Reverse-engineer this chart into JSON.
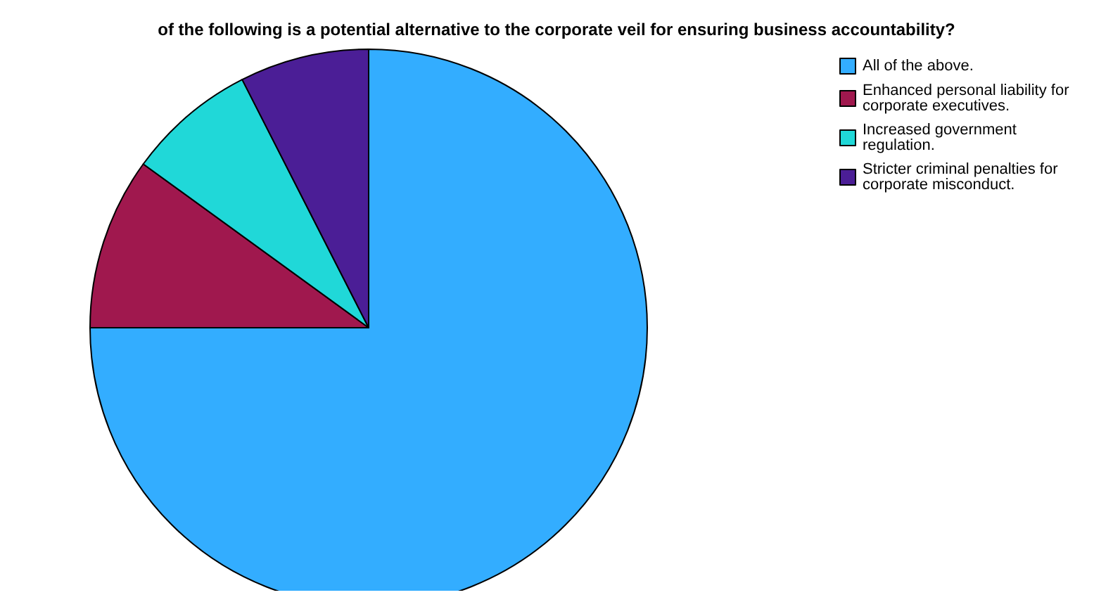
{
  "chart_data": {
    "type": "pie",
    "title": "of the following is a potential alternative to the corporate veil for ensuring business accountability?",
    "categories": [
      "All of the above.",
      "Enhanced personal liability for corporate executives.",
      "Increased government regulation.",
      "Stricter criminal penalties for corporate misconduct."
    ],
    "values": [
      75,
      10,
      7.5,
      7.5
    ],
    "colors": [
      "#33adff",
      "#a0184e",
      "#20d8d8",
      "#4b1e96"
    ],
    "legend": "top right"
  }
}
